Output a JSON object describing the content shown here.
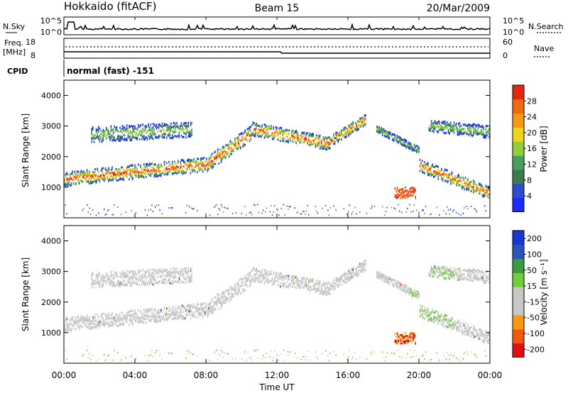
{
  "header": {
    "station": "Hokkaido (fitACF)",
    "beam": "Beam 15",
    "date": "20/Mar/2009"
  },
  "strip_labels": {
    "nsky": "N.Sky",
    "nsearch": "N.Search",
    "nsearch_tick_left_top": "10^5",
    "nsearch_tick_left_bot": "10^0",
    "nsearch_tick_right_top": "10^5",
    "nsearch_tick_right_bot": "10^0",
    "freq_line1": "Freq.",
    "freq_line2": "[MHz]",
    "freq_tick_top": "18",
    "freq_tick_bot": "8",
    "nave": "Nave",
    "nave_tick_top": "60",
    "nave_tick_bot": "0",
    "cpid": "CPID",
    "cpid_value": "normal (fast) -151"
  },
  "colors": {
    "power": [
      "#1a2bff",
      "#2c4bd0",
      "#3e7a4f",
      "#48a060",
      "#8fcf3a",
      "#f2d21a",
      "#f59a12",
      "#f06a10",
      "#e02810"
    ],
    "velocity": [
      "#e01010",
      "#f05a10",
      "#f59a12",
      "#c8c8c8",
      "#c8c8c8",
      "#6fcf3a",
      "#3c9a40",
      "#2a55b8",
      "#1a38d0"
    ]
  },
  "chart_data": [
    {
      "type": "heatmap",
      "name": "Power",
      "ylabel": "Slant Range [km]",
      "xlabel": "Time UT",
      "ylim": [
        0,
        4500
      ],
      "yticks": [
        "1000",
        "2000",
        "3000",
        "4000"
      ],
      "xticks": [
        "00:00",
        "04:00",
        "08:00",
        "12:00",
        "16:00",
        "20:00",
        "00:00"
      ],
      "colorbar": {
        "label": "Power [dB]",
        "ticks": [
          "4",
          "8",
          "12",
          "16",
          "20",
          "24",
          "28"
        ]
      }
    },
    {
      "type": "heatmap",
      "name": "Velocity",
      "ylabel": "Slant Range [km]",
      "xlabel": "Time UT",
      "ylim": [
        0,
        4500
      ],
      "yticks": [
        "1000",
        "2000",
        "3000",
        "4000"
      ],
      "xticks": [
        "00:00",
        "04:00",
        "08:00",
        "12:00",
        "16:00",
        "20:00",
        "00:00"
      ],
      "colorbar": {
        "label": "Velocity [m s⁻¹]",
        "ticks": [
          "-200",
          "-100",
          "-50",
          "-15",
          "15",
          "50",
          "100",
          "200"
        ]
      }
    }
  ]
}
